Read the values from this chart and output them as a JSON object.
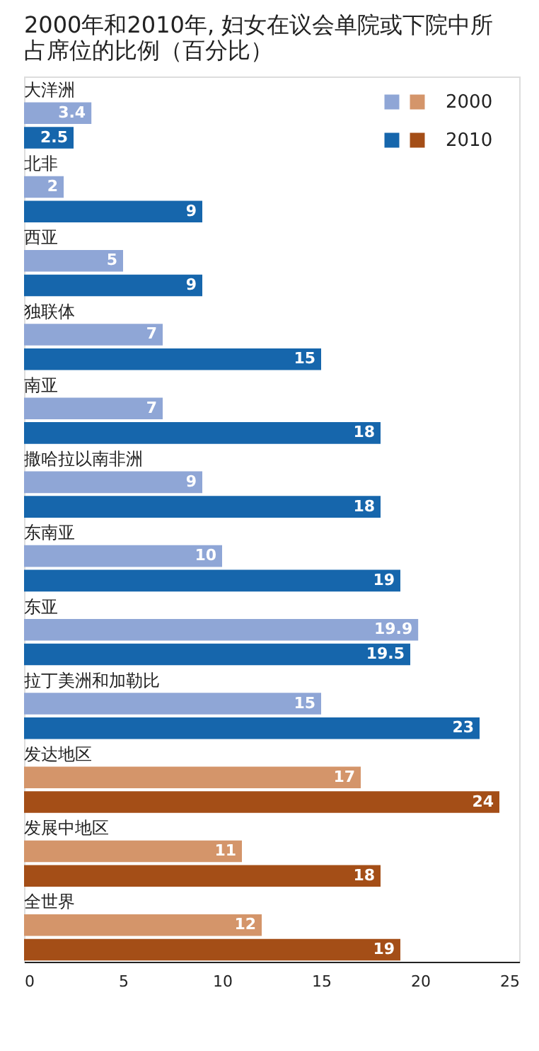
{
  "chart_data": {
    "type": "bar",
    "orientation": "horizontal",
    "title": "2000年和2010年, 妇女在议会单院或下院中所占席位的比例（百分比）",
    "categories": [
      "大洋洲",
      "北非",
      "西亚",
      "独联体",
      "南亚",
      "撒哈拉以南非洲",
      "东南亚",
      "东亚",
      "拉丁美洲和加勒比",
      "发达地区",
      "发展中地区",
      "全世界"
    ],
    "series": [
      {
        "name": "2000",
        "color": "#8fa6d6",
        "colors": [
          "#8fa6d6",
          "#8fa6d6",
          "#8fa6d6",
          "#8fa6d6",
          "#8fa6d6",
          "#8fa6d6",
          "#8fa6d6",
          "#8fa6d6",
          "#8fa6d6",
          "#d4956a",
          "#d4956a",
          "#d4956a"
        ],
        "values": [
          3.4,
          2,
          5,
          7,
          7,
          9,
          10,
          19.9,
          15,
          17,
          11,
          12
        ]
      },
      {
        "name": "2010",
        "color": "#1666ac",
        "colors": [
          "#1666ac",
          "#1666ac",
          "#1666ac",
          "#1666ac",
          "#1666ac",
          "#1666ac",
          "#1666ac",
          "#1666ac",
          "#1666ac",
          "#a44e17",
          "#a44e17",
          "#a44e17"
        ],
        "values": [
          2.5,
          9,
          9,
          15,
          18,
          18,
          19,
          19.5,
          23,
          24,
          18,
          19
        ]
      }
    ],
    "xlim": [
      0,
      25
    ],
    "xticks": [
      0,
      5,
      10,
      15,
      20,
      25
    ],
    "grid": false,
    "legend": "top right",
    "data_labels": true
  }
}
